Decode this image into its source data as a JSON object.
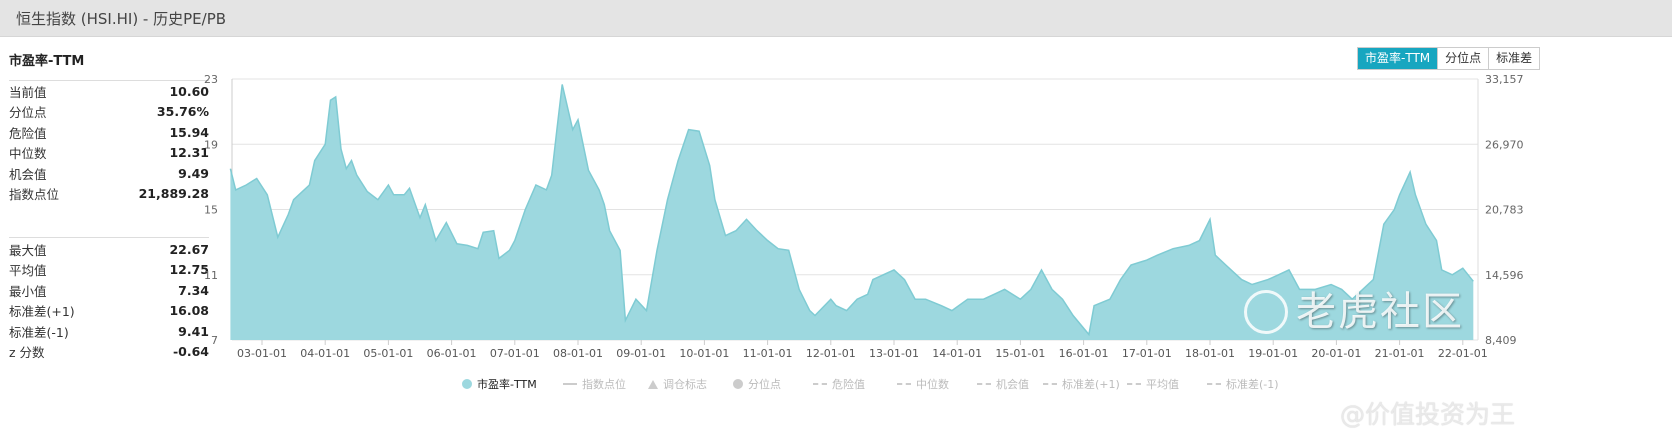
{
  "header": {
    "title": "恒生指数 (HSI.HI) - 历史PE/PB"
  },
  "metric_title": "市盈率-TTM",
  "stats_top": [
    {
      "label": "当前值",
      "value": "10.60"
    },
    {
      "label": "分位点",
      "value": "35.76%"
    },
    {
      "label": "危险值",
      "value": "15.94"
    },
    {
      "label": "中位数",
      "value": "12.31"
    },
    {
      "label": "机会值",
      "value": "9.49"
    },
    {
      "label": "指数点位",
      "value": "21,889.28"
    }
  ],
  "stats_bottom": [
    {
      "label": "最大值",
      "value": "22.67"
    },
    {
      "label": "平均值",
      "value": "12.75"
    },
    {
      "label": "最小值",
      "value": "7.34"
    },
    {
      "label": "标准差(+1)",
      "value": "16.08"
    },
    {
      "label": "标准差(-1)",
      "value": "9.41"
    },
    {
      "label": "z 分数",
      "value": "-0.64"
    }
  ],
  "buttons": [
    {
      "label": "市盈率-TTM",
      "active": true
    },
    {
      "label": "分位点",
      "active": false
    },
    {
      "label": "标准差",
      "active": false
    }
  ],
  "watermark": {
    "brand": "老虎社区",
    "author": "@价值投资为王"
  },
  "colors": {
    "series": "#9dd8df",
    "series_line": "#7fcbd3",
    "accent": "#17a6c0"
  },
  "chart_data": {
    "type": "area",
    "title": "",
    "ylim": [
      7,
      23
    ],
    "yticks": [
      "23",
      "19",
      "15",
      "11",
      "7"
    ],
    "y2ticks": [
      "33,157",
      "26,970",
      "20,783",
      "14,596",
      "8,409"
    ],
    "xticks": [
      "03-01-01",
      "04-01-01",
      "05-01-01",
      "06-01-01",
      "07-01-01",
      "08-01-01",
      "09-01-01",
      "10-01-01",
      "11-01-01",
      "12-01-01",
      "13-01-01",
      "14-01-01",
      "15-01-01",
      "16-01-01",
      "17-01-01",
      "18-01-01",
      "19-01-01",
      "20-01-01",
      "21-01-01",
      "22-01-01"
    ],
    "grid": true,
    "legend_position": "bottom",
    "legend": [
      {
        "name": "市盈率-TTM",
        "marker": "circle",
        "active": true
      },
      {
        "name": "指数点位",
        "marker": "line",
        "active": false
      },
      {
        "name": "调仓标志",
        "marker": "triangle",
        "active": false
      },
      {
        "name": "分位点",
        "marker": "circle",
        "active": false
      },
      {
        "name": "危险值",
        "marker": "dash",
        "active": false
      },
      {
        "name": "中位数",
        "marker": "dash",
        "active": false
      },
      {
        "name": "机会值",
        "marker": "dash",
        "active": false
      },
      {
        "name": "标准差(+1)",
        "marker": "dash",
        "active": false
      },
      {
        "name": "平均值",
        "marker": "dash",
        "active": false
      },
      {
        "name": "标准差(-1)",
        "marker": "dash",
        "active": false
      }
    ],
    "series": [
      {
        "name": "市盈率-TTM",
        "points": [
          [
            "2002-07",
            17.5
          ],
          [
            "2002-08",
            16.2
          ],
          [
            "2002-10",
            16.5
          ],
          [
            "2002-12",
            16.9
          ],
          [
            "2003-02",
            15.9
          ],
          [
            "2003-04",
            13.3
          ],
          [
            "2003-06",
            14.7
          ],
          [
            "2003-07",
            15.6
          ],
          [
            "2003-10",
            16.5
          ],
          [
            "2003-11",
            18.0
          ],
          [
            "2004-01",
            19.0
          ],
          [
            "2004-02",
            21.7
          ],
          [
            "2004-03",
            21.9
          ],
          [
            "2004-04",
            18.7
          ],
          [
            "2004-05",
            17.5
          ],
          [
            "2004-06",
            18.0
          ],
          [
            "2004-07",
            17.1
          ],
          [
            "2004-09",
            16.1
          ],
          [
            "2004-11",
            15.6
          ],
          [
            "2005-01",
            16.5
          ],
          [
            "2005-02",
            15.9
          ],
          [
            "2005-04",
            15.9
          ],
          [
            "2005-05",
            16.3
          ],
          [
            "2005-07",
            14.5
          ],
          [
            "2005-08",
            15.3
          ],
          [
            "2005-10",
            13.1
          ],
          [
            "2005-12",
            14.2
          ],
          [
            "2006-02",
            12.9
          ],
          [
            "2006-04",
            12.8
          ],
          [
            "2006-06",
            12.6
          ],
          [
            "2006-07",
            13.6
          ],
          [
            "2006-09",
            13.7
          ],
          [
            "2006-10",
            12.0
          ],
          [
            "2006-12",
            12.5
          ],
          [
            "2007-01",
            13.1
          ],
          [
            "2007-03",
            15.0
          ],
          [
            "2007-05",
            16.5
          ],
          [
            "2007-07",
            16.2
          ],
          [
            "2007-08",
            17.1
          ],
          [
            "2007-09",
            19.9
          ],
          [
            "2007-10",
            22.67
          ],
          [
            "2007-12",
            19.9
          ],
          [
            "2008-01",
            20.5
          ],
          [
            "2008-03",
            17.4
          ],
          [
            "2008-05",
            16.2
          ],
          [
            "2008-06",
            15.3
          ],
          [
            "2008-07",
            13.7
          ],
          [
            "2008-09",
            12.5
          ],
          [
            "2008-10",
            8.2
          ],
          [
            "2008-12",
            9.5
          ],
          [
            "2009-02",
            8.8
          ],
          [
            "2009-04",
            12.5
          ],
          [
            "2009-06",
            15.6
          ],
          [
            "2009-08",
            18.0
          ],
          [
            "2009-10",
            19.9
          ],
          [
            "2009-12",
            19.8
          ],
          [
            "2010-02",
            17.7
          ],
          [
            "2010-03",
            15.6
          ],
          [
            "2010-05",
            13.4
          ],
          [
            "2010-07",
            13.7
          ],
          [
            "2010-09",
            14.4
          ],
          [
            "2010-11",
            13.7
          ],
          [
            "2011-01",
            13.1
          ],
          [
            "2011-03",
            12.6
          ],
          [
            "2011-05",
            12.5
          ],
          [
            "2011-07",
            10.1
          ],
          [
            "2011-09",
            8.8
          ],
          [
            "2011-10",
            8.5
          ],
          [
            "2012-01",
            9.5
          ],
          [
            "2012-02",
            9.1
          ],
          [
            "2012-04",
            8.8
          ],
          [
            "2012-06",
            9.5
          ],
          [
            "2012-08",
            9.8
          ],
          [
            "2012-09",
            10.7
          ],
          [
            "2013-01",
            11.3
          ],
          [
            "2013-03",
            10.7
          ],
          [
            "2013-05",
            9.5
          ],
          [
            "2013-07",
            9.5
          ],
          [
            "2013-10",
            9.1
          ],
          [
            "2013-12",
            8.8
          ],
          [
            "2014-03",
            9.5
          ],
          [
            "2014-06",
            9.5
          ],
          [
            "2014-08",
            9.8
          ],
          [
            "2014-10",
            10.1
          ],
          [
            "2015-01",
            9.5
          ],
          [
            "2015-03",
            10.1
          ],
          [
            "2015-05",
            11.3
          ],
          [
            "2015-07",
            10.1
          ],
          [
            "2015-09",
            9.5
          ],
          [
            "2015-11",
            8.5
          ],
          [
            "2016-02",
            7.34
          ],
          [
            "2016-03",
            9.1
          ],
          [
            "2016-06",
            9.5
          ],
          [
            "2016-08",
            10.7
          ],
          [
            "2016-10",
            11.6
          ],
          [
            "2017-01",
            11.9
          ],
          [
            "2017-03",
            12.2
          ],
          [
            "2017-06",
            12.6
          ],
          [
            "2017-09",
            12.8
          ],
          [
            "2017-11",
            13.1
          ],
          [
            "2018-01",
            14.4
          ],
          [
            "2018-02",
            12.2
          ],
          [
            "2018-04",
            11.6
          ],
          [
            "2018-07",
            10.7
          ],
          [
            "2018-09",
            10.4
          ],
          [
            "2018-12",
            10.7
          ],
          [
            "2019-02",
            11.0
          ],
          [
            "2019-04",
            11.3
          ],
          [
            "2019-06",
            10.1
          ],
          [
            "2019-09",
            10.1
          ],
          [
            "2019-12",
            10.4
          ],
          [
            "2020-02",
            10.1
          ],
          [
            "2020-04",
            9.5
          ],
          [
            "2020-06",
            10.1
          ],
          [
            "2020-08",
            10.7
          ],
          [
            "2020-10",
            14.1
          ],
          [
            "2020-12",
            15.0
          ],
          [
            "2021-01",
            15.9
          ],
          [
            "2021-03",
            17.3
          ],
          [
            "2021-04",
            15.9
          ],
          [
            "2021-06",
            14.1
          ],
          [
            "2021-08",
            13.1
          ],
          [
            "2021-09",
            11.3
          ],
          [
            "2021-11",
            11.0
          ],
          [
            "2022-01",
            11.4
          ],
          [
            "2022-03",
            10.6
          ]
        ]
      }
    ]
  }
}
